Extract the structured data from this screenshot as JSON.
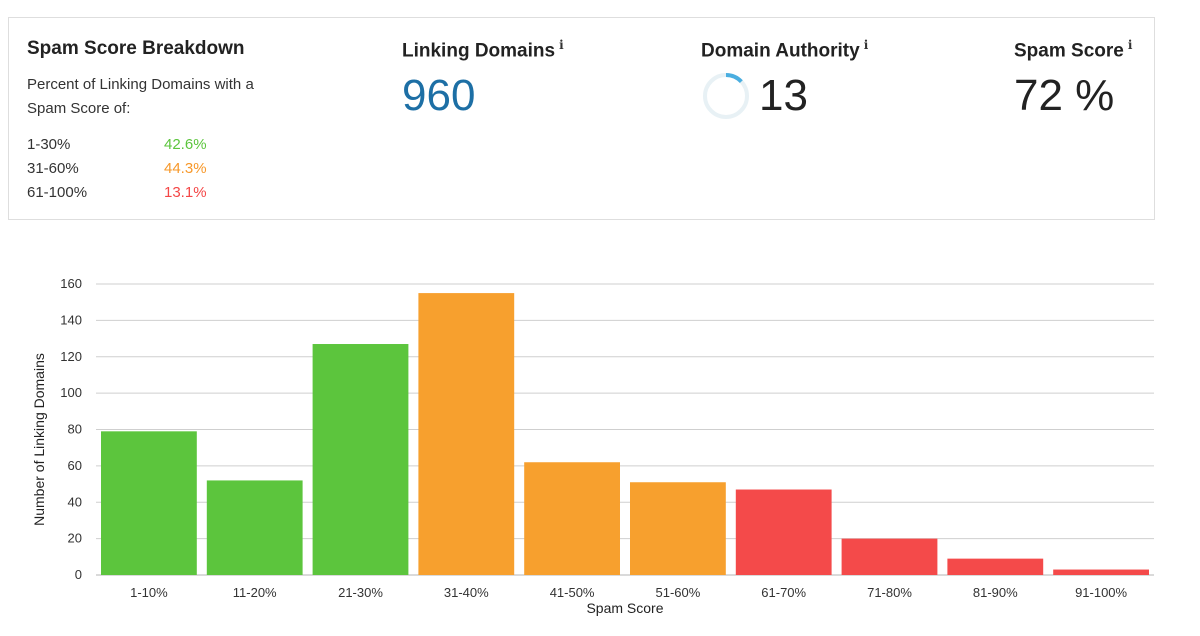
{
  "breakdown": {
    "title": "Spam Score Breakdown",
    "description": "Percent of Linking Domains with a Spam Score of:",
    "ranges": [
      {
        "label": "1-30%",
        "percent": "42.6%",
        "color": "#5cc53d"
      },
      {
        "label": "31-60%",
        "percent": "44.3%",
        "color": "#f7982a"
      },
      {
        "label": "61-100%",
        "percent": "13.1%",
        "color": "#f44747"
      }
    ]
  },
  "metrics": {
    "linking_domains": {
      "title": "Linking Domains",
      "value": "960"
    },
    "domain_authority": {
      "title": "Domain Authority",
      "value": "13",
      "ring_fraction": 0.13,
      "ring_color": "#4aaee0"
    },
    "spam_score": {
      "title": "Spam Score",
      "value": "72 %"
    },
    "info_icon": "i"
  },
  "chart_data": {
    "type": "bar",
    "xlabel": "Spam Score",
    "ylabel": "Number of Linking Domains",
    "ylim": [
      0,
      160
    ],
    "yticks": [
      0,
      20,
      40,
      60,
      80,
      100,
      120,
      140,
      160
    ],
    "grid": true,
    "categories": [
      "1-10%",
      "11-20%",
      "21-30%",
      "31-40%",
      "41-50%",
      "51-60%",
      "61-70%",
      "71-80%",
      "81-90%",
      "91-100%"
    ],
    "values": [
      79,
      52,
      127,
      155,
      62,
      51,
      47,
      20,
      9,
      3
    ],
    "colors": [
      "#5cc53d",
      "#5cc53d",
      "#5cc53d",
      "#f7a02e",
      "#f7a02e",
      "#f7a02e",
      "#f44a4a",
      "#f44a4a",
      "#f44a4a",
      "#f44a4a"
    ]
  }
}
